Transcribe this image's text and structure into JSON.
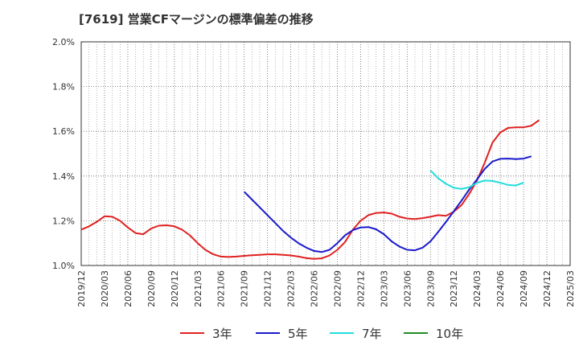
{
  "page_title": "[7619]  営業CFマージンの標準偏差の推移",
  "chart_data": {
    "type": "line",
    "title": "[7619]  営業CFマージンの標準偏差の推移",
    "xlabel": "",
    "ylabel": "",
    "ylim": [
      1.0,
      2.0
    ],
    "yticks": [
      "1.0%",
      "1.2%",
      "1.4%",
      "1.6%",
      "1.8%",
      "2.0%"
    ],
    "ytick_values": [
      1.0,
      1.2,
      1.4,
      1.6,
      1.8,
      2.0
    ],
    "xticks": [
      "2019/12",
      "2020/03",
      "2020/06",
      "2020/09",
      "2020/12",
      "2021/03",
      "2021/06",
      "2021/09",
      "2021/12",
      "2022/03",
      "2022/06",
      "2022/09",
      "2022/12",
      "2023/03",
      "2023/06",
      "2023/09",
      "2023/12",
      "2024/03",
      "2024/06",
      "2024/09",
      "2024/12",
      "2025/03"
    ],
    "grid": true,
    "legend_position": "bottom",
    "series": [
      {
        "name": "3年",
        "color": "#e02020",
        "start": "2019/12",
        "values": [
          1.16,
          1.175,
          1.195,
          1.22,
          1.218,
          1.2,
          1.17,
          1.145,
          1.14,
          1.165,
          1.178,
          1.18,
          1.175,
          1.16,
          1.135,
          1.1,
          1.07,
          1.05,
          1.04,
          1.038,
          1.04,
          1.043,
          1.046,
          1.048,
          1.05,
          1.05,
          1.048,
          1.045,
          1.04,
          1.033,
          1.03,
          1.032,
          1.045,
          1.07,
          1.105,
          1.16,
          1.2,
          1.225,
          1.235,
          1.237,
          1.232,
          1.218,
          1.21,
          1.208,
          1.212,
          1.218,
          1.225,
          1.222,
          1.24,
          1.27,
          1.32,
          1.38,
          1.46,
          1.55,
          1.595,
          1.615,
          1.618,
          1.618,
          1.625,
          1.65
        ]
      },
      {
        "name": "5年",
        "color": "#1a1acc",
        "start": "2021/09",
        "values": [
          1.33,
          1.295,
          1.26,
          1.225,
          1.19,
          1.155,
          1.125,
          1.1,
          1.08,
          1.065,
          1.06,
          1.07,
          1.1,
          1.135,
          1.158,
          1.17,
          1.172,
          1.162,
          1.14,
          1.108,
          1.085,
          1.07,
          1.068,
          1.08,
          1.108,
          1.15,
          1.195,
          1.242,
          1.29,
          1.34,
          1.385,
          1.432,
          1.465,
          1.477,
          1.478,
          1.476,
          1.478,
          1.488
        ]
      },
      {
        "name": "7年",
        "color": "#22dddd",
        "start": "2023/09",
        "values": [
          1.425,
          1.39,
          1.365,
          1.348,
          1.342,
          1.35,
          1.37,
          1.38,
          1.378,
          1.37,
          1.36,
          1.358,
          1.37
        ]
      },
      {
        "name": "10年",
        "color": "#228b22",
        "start": "",
        "values": []
      }
    ]
  }
}
